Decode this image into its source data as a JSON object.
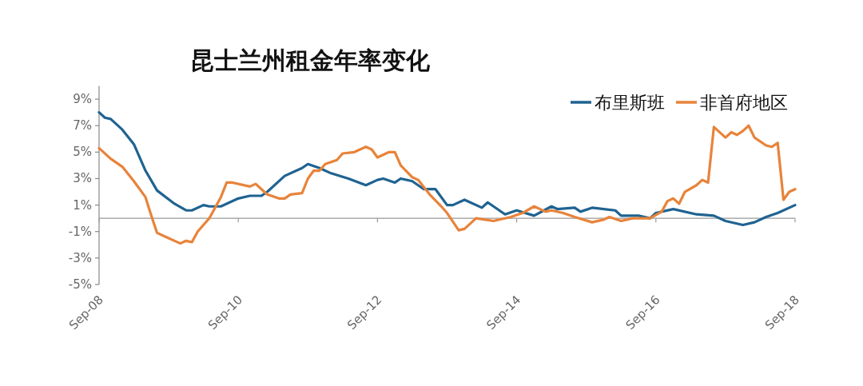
{
  "chart_data": {
    "type": "line",
    "title": "昆士兰州租金年率变化",
    "xlim": [
      "2008-09",
      "2018-09"
    ],
    "xticks": [
      {
        "value": "2008-09",
        "label": "Sep-08"
      },
      {
        "value": "2010-09",
        "label": "Sep-10"
      },
      {
        "value": "2012-09",
        "label": "Sep-12"
      },
      {
        "value": "2014-09",
        "label": "Sep-14"
      },
      {
        "value": "2016-09",
        "label": "Sep-16"
      },
      {
        "value": "2018-09",
        "label": "Sep-18"
      }
    ],
    "ylim": [
      -5,
      10
    ],
    "yticks": [
      {
        "value": -5,
        "label": "-5%"
      },
      {
        "value": -3,
        "label": "-3%"
      },
      {
        "value": -1,
        "label": "-1%"
      },
      {
        "value": 1,
        "label": "1%"
      },
      {
        "value": 3,
        "label": "3%"
      },
      {
        "value": 5,
        "label": "5%"
      },
      {
        "value": 7,
        "label": "7%"
      },
      {
        "value": 9,
        "label": "9%"
      }
    ],
    "legend": "top right",
    "series": [
      {
        "name": "布里斯班",
        "color": "#1f6391",
        "x": [
          "2008-09",
          "2008-10",
          "2008-11",
          "2009-01",
          "2009-03",
          "2009-05",
          "2009-07",
          "2009-10",
          "2009-12",
          "2010-01",
          "2010-03",
          "2010-04",
          "2010-06",
          "2010-09",
          "2010-11",
          "2011-01",
          "2011-02",
          "2011-05",
          "2011-08",
          "2011-09",
          "2011-11",
          "2012-01",
          "2012-04",
          "2012-07",
          "2012-09",
          "2012-10",
          "2012-12",
          "2013-01",
          "2013-03",
          "2013-05",
          "2013-07",
          "2013-09",
          "2013-10",
          "2013-12",
          "2014-03",
          "2014-04",
          "2014-07",
          "2014-09",
          "2014-12",
          "2015-03",
          "2015-04",
          "2015-07",
          "2015-08",
          "2015-10",
          "2016-02",
          "2016-03",
          "2016-06",
          "2016-08",
          "2016-09",
          "2016-12",
          "2017-04",
          "2017-07",
          "2017-09",
          "2017-12",
          "2018-02",
          "2018-04",
          "2018-06",
          "2018-09"
        ],
        "values": [
          8.0,
          7.6,
          7.5,
          6.7,
          5.6,
          3.6,
          2.1,
          1.1,
          0.6,
          0.6,
          1.0,
          0.9,
          0.9,
          1.5,
          1.7,
          1.7,
          2.0,
          3.2,
          3.8,
          4.1,
          3.8,
          3.4,
          3.0,
          2.5,
          2.9,
          3.0,
          2.7,
          3.0,
          2.8,
          2.2,
          2.2,
          1.0,
          1.0,
          1.4,
          0.8,
          1.2,
          0.3,
          0.6,
          0.2,
          0.9,
          0.7,
          0.8,
          0.5,
          0.8,
          0.6,
          0.2,
          0.2,
          0.0,
          0.4,
          0.7,
          0.3,
          0.2,
          -0.2,
          -0.5,
          -0.3,
          0.1,
          0.4,
          1.0
        ]
      },
      {
        "name": "非首府地区",
        "color": "#e8833a",
        "x": [
          "2008-09",
          "2008-11",
          "2009-01",
          "2009-03",
          "2009-05",
          "2009-06",
          "2009-07",
          "2009-08",
          "2009-11",
          "2009-12",
          "2010-01",
          "2010-02",
          "2010-04",
          "2010-06",
          "2010-07",
          "2010-08",
          "2010-11",
          "2010-12",
          "2011-01",
          "2011-02",
          "2011-04",
          "2011-05",
          "2011-06",
          "2011-08",
          "2011-09",
          "2011-10",
          "2011-11",
          "2011-12",
          "2012-02",
          "2012-03",
          "2012-05",
          "2012-07",
          "2012-08",
          "2012-09",
          "2012-11",
          "2012-12",
          "2013-01",
          "2013-03",
          "2013-04",
          "2013-06",
          "2013-08",
          "2013-09",
          "2013-11",
          "2013-12",
          "2014-02",
          "2014-05",
          "2014-08",
          "2014-10",
          "2014-12",
          "2015-02",
          "2015-03",
          "2015-05",
          "2015-07",
          "2015-10",
          "2015-12",
          "2016-01",
          "2016-03",
          "2016-05",
          "2016-08",
          "2016-10",
          "2016-11",
          "2016-12",
          "2017-01",
          "2017-02",
          "2017-04",
          "2017-05",
          "2017-06",
          "2017-07",
          "2017-09",
          "2017-10",
          "2017-11",
          "2017-12",
          "2018-01",
          "2018-02",
          "2018-04",
          "2018-05",
          "2018-06",
          "2018-07",
          "2018-08",
          "2018-09"
        ],
        "values": [
          5.3,
          4.5,
          3.9,
          2.8,
          1.6,
          0.2,
          -1.1,
          -1.3,
          -1.9,
          -1.7,
          -1.8,
          -1.0,
          0.0,
          1.6,
          2.7,
          2.7,
          2.4,
          2.6,
          2.2,
          1.8,
          1.5,
          1.5,
          1.8,
          1.9,
          3.0,
          3.6,
          3.6,
          4.1,
          4.4,
          4.9,
          5.0,
          5.4,
          5.2,
          4.6,
          5.0,
          5.0,
          4.0,
          3.1,
          2.9,
          1.8,
          0.9,
          0.4,
          -0.9,
          -0.8,
          0.0,
          -0.2,
          0.1,
          0.4,
          0.9,
          0.5,
          0.6,
          0.4,
          0.1,
          -0.3,
          -0.1,
          0.1,
          -0.2,
          0.0,
          0.0,
          0.5,
          1.3,
          1.5,
          1.1,
          2.0,
          2.5,
          2.9,
          2.7,
          6.9,
          6.1,
          6.5,
          6.3,
          6.6,
          7.0,
          6.1,
          5.5,
          5.4,
          5.7,
          1.4,
          2.0,
          2.2
        ]
      }
    ]
  }
}
